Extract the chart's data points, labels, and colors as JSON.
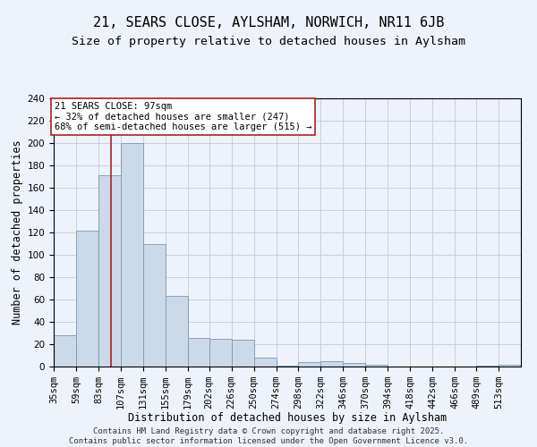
{
  "title1": "21, SEARS CLOSE, AYLSHAM, NORWICH, NR11 6JB",
  "title2": "Size of property relative to detached houses in Aylsham",
  "xlabel": "Distribution of detached houses by size in Aylsham",
  "ylabel": "Number of detached properties",
  "bar_edges": [
    35,
    59,
    83,
    107,
    131,
    155,
    179,
    202,
    226,
    250,
    274,
    298,
    322,
    346,
    370,
    394,
    418,
    442,
    466,
    489,
    513
  ],
  "bar_heights": [
    28,
    122,
    171,
    200,
    110,
    63,
    26,
    25,
    24,
    8,
    1,
    4,
    5,
    3,
    2,
    0,
    0,
    0,
    0,
    1,
    2
  ],
  "bar_color": "#ccd9e8",
  "bar_edge_color": "#7799bb",
  "grid_color": "#c8d0e0",
  "background_color": "#eef2fa",
  "vline_x": 97,
  "vline_color": "#aa2222",
  "annotation_text": "21 SEARS CLOSE: 97sqm\n← 32% of detached houses are smaller (247)\n68% of semi-detached houses are larger (515) →",
  "annotation_box_color": "white",
  "annotation_box_edge": "#aa2222",
  "ylim": [
    0,
    240
  ],
  "tick_labels": [
    "35sqm",
    "59sqm",
    "83sqm",
    "107sqm",
    "131sqm",
    "155sqm",
    "179sqm",
    "202sqm",
    "226sqm",
    "250sqm",
    "274sqm",
    "298sqm",
    "322sqm",
    "346sqm",
    "370sqm",
    "394sqm",
    "418sqm",
    "442sqm",
    "466sqm",
    "489sqm",
    "513sqm"
  ],
  "footer_text": "Contains HM Land Registry data © Crown copyright and database right 2025.\nContains public sector information licensed under the Open Government Licence v3.0.",
  "yticks": [
    0,
    20,
    40,
    60,
    80,
    100,
    120,
    140,
    160,
    180,
    200,
    220,
    240
  ],
  "title1_fontsize": 11,
  "title2_fontsize": 9.5,
  "xlabel_fontsize": 8.5,
  "ylabel_fontsize": 8.5,
  "tick_fontsize": 7.5,
  "annotation_fontsize": 7.5,
  "footer_fontsize": 6.5
}
